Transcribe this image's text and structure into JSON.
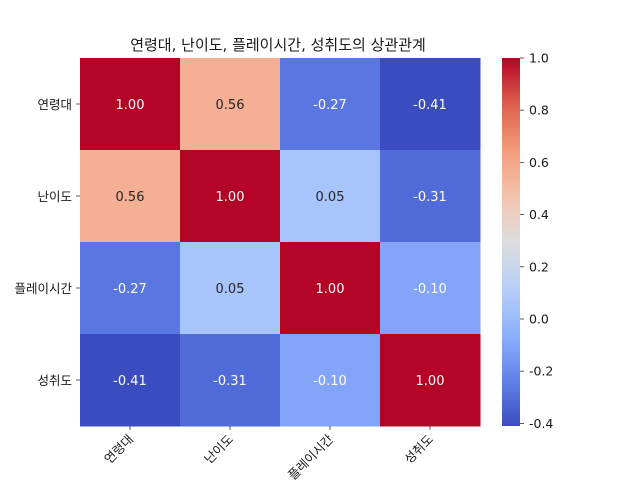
{
  "chart_data": {
    "type": "heatmap",
    "title": "연령대, 난이도, 플레이시간, 성취도의 상관관계",
    "row_labels": [
      "연령대",
      "난이도",
      "플레이시간",
      "성취도"
    ],
    "col_labels": [
      "연령대",
      "난이도",
      "플레이시간",
      "성취도"
    ],
    "values": [
      [
        1.0,
        0.56,
        -0.27,
        -0.41
      ],
      [
        0.56,
        1.0,
        0.05,
        -0.31
      ],
      [
        -0.27,
        0.05,
        1.0,
        -0.1
      ],
      [
        -0.41,
        -0.31,
        -0.1,
        1.0
      ]
    ],
    "value_labels": [
      [
        "1.00",
        "0.56",
        "-0.27",
        "-0.41"
      ],
      [
        "0.56",
        "1.00",
        "0.05",
        "-0.31"
      ],
      [
        "-0.27",
        "0.05",
        "1.00",
        "-0.10"
      ],
      [
        "-0.41",
        "-0.31",
        "-0.10",
        "1.00"
      ]
    ],
    "colormap": "coolwarm",
    "colorbar": {
      "range": [
        -0.41,
        1.0
      ],
      "ticks": [
        "1.0",
        "0.8",
        "0.6",
        "0.4",
        "0.2",
        "0.0",
        "-0.2",
        "-0.4"
      ],
      "tick_values": [
        1.0,
        0.8,
        0.6,
        0.4,
        0.2,
        0.0,
        -0.2,
        -0.4
      ]
    },
    "grid": false
  }
}
